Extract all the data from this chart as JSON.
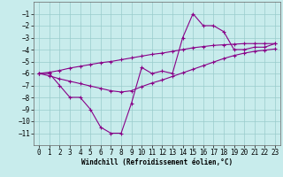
{
  "xlabel": "Windchill (Refroidissement éolien,°C)",
  "x_hours": [
    0,
    1,
    2,
    3,
    4,
    5,
    6,
    7,
    8,
    9,
    10,
    11,
    12,
    13,
    14,
    15,
    16,
    17,
    18,
    19,
    20,
    21,
    22,
    23
  ],
  "windchill": [
    -6.0,
    -6.0,
    -7.0,
    -8.0,
    -8.0,
    -9.0,
    -10.5,
    -11.0,
    -11.0,
    -8.5,
    -5.5,
    -6.0,
    -5.8,
    -6.0,
    -3.0,
    -1.0,
    -2.0,
    -2.0,
    -2.5,
    -4.0,
    -4.0,
    -3.8,
    -3.8,
    -3.5
  ],
  "temp_upper": [
    -6.0,
    -5.9,
    -5.75,
    -5.55,
    -5.4,
    -5.25,
    -5.1,
    -5.0,
    -4.85,
    -4.7,
    -4.55,
    -4.4,
    -4.3,
    -4.15,
    -4.0,
    -3.85,
    -3.75,
    -3.65,
    -3.6,
    -3.55,
    -3.5,
    -3.5,
    -3.5,
    -3.5
  ],
  "temp_lower": [
    -6.0,
    -6.2,
    -6.45,
    -6.65,
    -6.85,
    -7.05,
    -7.25,
    -7.45,
    -7.55,
    -7.45,
    -7.1,
    -6.8,
    -6.55,
    -6.25,
    -5.95,
    -5.65,
    -5.35,
    -5.05,
    -4.75,
    -4.5,
    -4.3,
    -4.15,
    -4.05,
    -3.95
  ],
  "line_color": "#880088",
  "bg_color": "#c8ecec",
  "grid_color": "#99cccc",
  "ylim_min": -12,
  "ylim_max": 0,
  "yticks": [
    -11,
    -10,
    -9,
    -8,
    -7,
    -6,
    -5,
    -4,
    -3,
    -2,
    -1
  ],
  "xticks": [
    0,
    1,
    2,
    3,
    4,
    5,
    6,
    7,
    8,
    9,
    10,
    11,
    12,
    13,
    14,
    15,
    16,
    17,
    18,
    19,
    20,
    21,
    22,
    23
  ],
  "tick_fontsize": 5.5,
  "xlabel_fontsize": 5.5
}
